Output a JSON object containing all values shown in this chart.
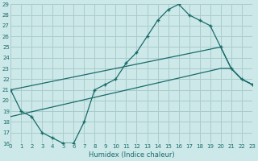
{
  "xlabel": "Humidex (Indice chaleur)",
  "bg_color": "#cce8e8",
  "grid_color": "#aacccc",
  "line_color": "#1a6b6b",
  "xlim": [
    0,
    23
  ],
  "ylim": [
    16,
    29
  ],
  "xticks": [
    0,
    1,
    2,
    3,
    4,
    5,
    6,
    7,
    8,
    9,
    10,
    11,
    12,
    13,
    14,
    15,
    16,
    17,
    18,
    19,
    20,
    21,
    22,
    23
  ],
  "yticks": [
    16,
    17,
    18,
    19,
    20,
    21,
    22,
    23,
    24,
    25,
    26,
    27,
    28,
    29
  ],
  "line1_x": [
    0,
    1,
    2,
    3,
    4,
    5,
    6,
    7,
    8,
    9,
    10,
    11,
    12,
    13,
    14,
    15,
    16,
    17,
    18,
    19,
    20,
    21,
    22,
    23
  ],
  "line1_y": [
    21,
    19,
    18.5,
    17,
    16.5,
    16,
    16,
    18,
    21,
    21.5,
    22,
    23.5,
    24.5,
    26,
    27.5,
    28.5,
    29,
    28,
    27.5,
    27,
    25,
    23,
    22,
    21.5
  ],
  "line2_x": [
    0,
    20,
    21,
    22,
    23
  ],
  "line2_y": [
    21,
    25,
    23,
    22,
    21.5
  ],
  "line3_x": [
    0,
    20,
    21,
    22,
    23
  ],
  "line3_y": [
    18.5,
    23,
    23,
    22,
    21.5
  ]
}
